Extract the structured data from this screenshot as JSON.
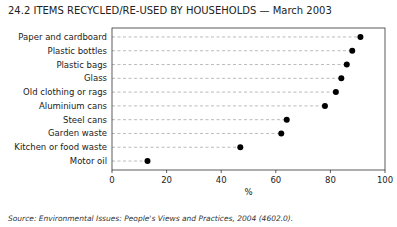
{
  "chart_data": {
    "type": "dot",
    "orientation": "horizontal",
    "title": "24.2   ITEMS RECYCLED/RE-USED BY HOUSEHOLDS — March 2003",
    "source": "Source:  Environmental Issues: People's Views and Practices, 2004 (4602.0).",
    "categories": [
      "Motor oil",
      "Kitchen or food waste",
      "Garden waste",
      "Steel cans",
      "Aluminium cans",
      "Old clothing or rags",
      "Glass",
      "Plastic  bags",
      "Plastic  bottles",
      "Paper and cardboard"
    ],
    "values": [
      13,
      47,
      62,
      64,
      78,
      82,
      84,
      86,
      88,
      91
    ],
    "xlabel": "%",
    "xlim": [
      0,
      100
    ],
    "xticks": [
      0,
      20,
      40,
      60,
      80,
      100
    ],
    "color": "#000000",
    "marker": "circle",
    "line_style": "dashed",
    "grid": false
  }
}
